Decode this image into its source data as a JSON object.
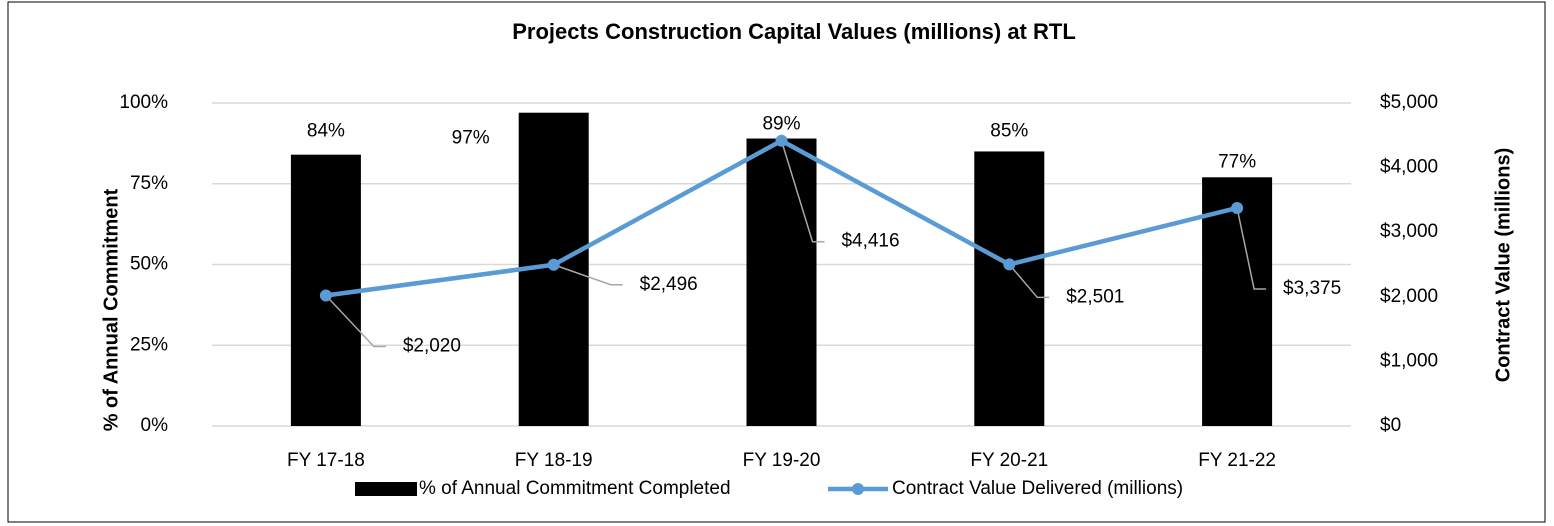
{
  "chart_data": {
    "type": "bar_line",
    "title": "Projects Construction Capital Values (millions) at RTL",
    "categories": [
      "FY 17-18",
      "FY 18-19",
      "FY 19-20",
      "FY 20-21",
      "FY 21-22"
    ],
    "y_label": "% of Annual Commitment",
    "y2_label": "Contract Value (millions)",
    "ylim": [
      0,
      100
    ],
    "yticks": [
      {
        "value": 0,
        "label": "0%"
      },
      {
        "value": 25,
        "label": "25%"
      },
      {
        "value": 50,
        "label": "50%"
      },
      {
        "value": 75,
        "label": "75%"
      },
      {
        "value": 100,
        "label": "100%"
      }
    ],
    "y2lim": [
      0,
      5000
    ],
    "y2ticks": [
      {
        "value": 0,
        "label": "$0"
      },
      {
        "value": 1000,
        "label": "$1,000"
      },
      {
        "value": 2000,
        "label": "$2,000"
      },
      {
        "value": 3000,
        "label": "$3,000"
      },
      {
        "value": 4000,
        "label": "$4,000"
      },
      {
        "value": 5000,
        "label": "$5,000"
      }
    ],
    "grid": true,
    "legend": "bottom",
    "series": [
      {
        "name": "% of Annual Commitment Completed",
        "type": "bar",
        "color": "#000000",
        "values": [
          84,
          97,
          89,
          85,
          77
        ],
        "value_labels": [
          "84%",
          "97%",
          "89%",
          "85%",
          "77%"
        ]
      },
      {
        "name": "Contract Value Delivered (millions)",
        "type": "line",
        "axis": "y2",
        "color": "#5b9bd5",
        "values": [
          2020,
          2496,
          4416,
          2501,
          3375
        ],
        "value_labels": [
          "$2,020",
          "$2,496",
          "$4,416",
          "$2,501",
          "$3,375"
        ]
      }
    ]
  }
}
